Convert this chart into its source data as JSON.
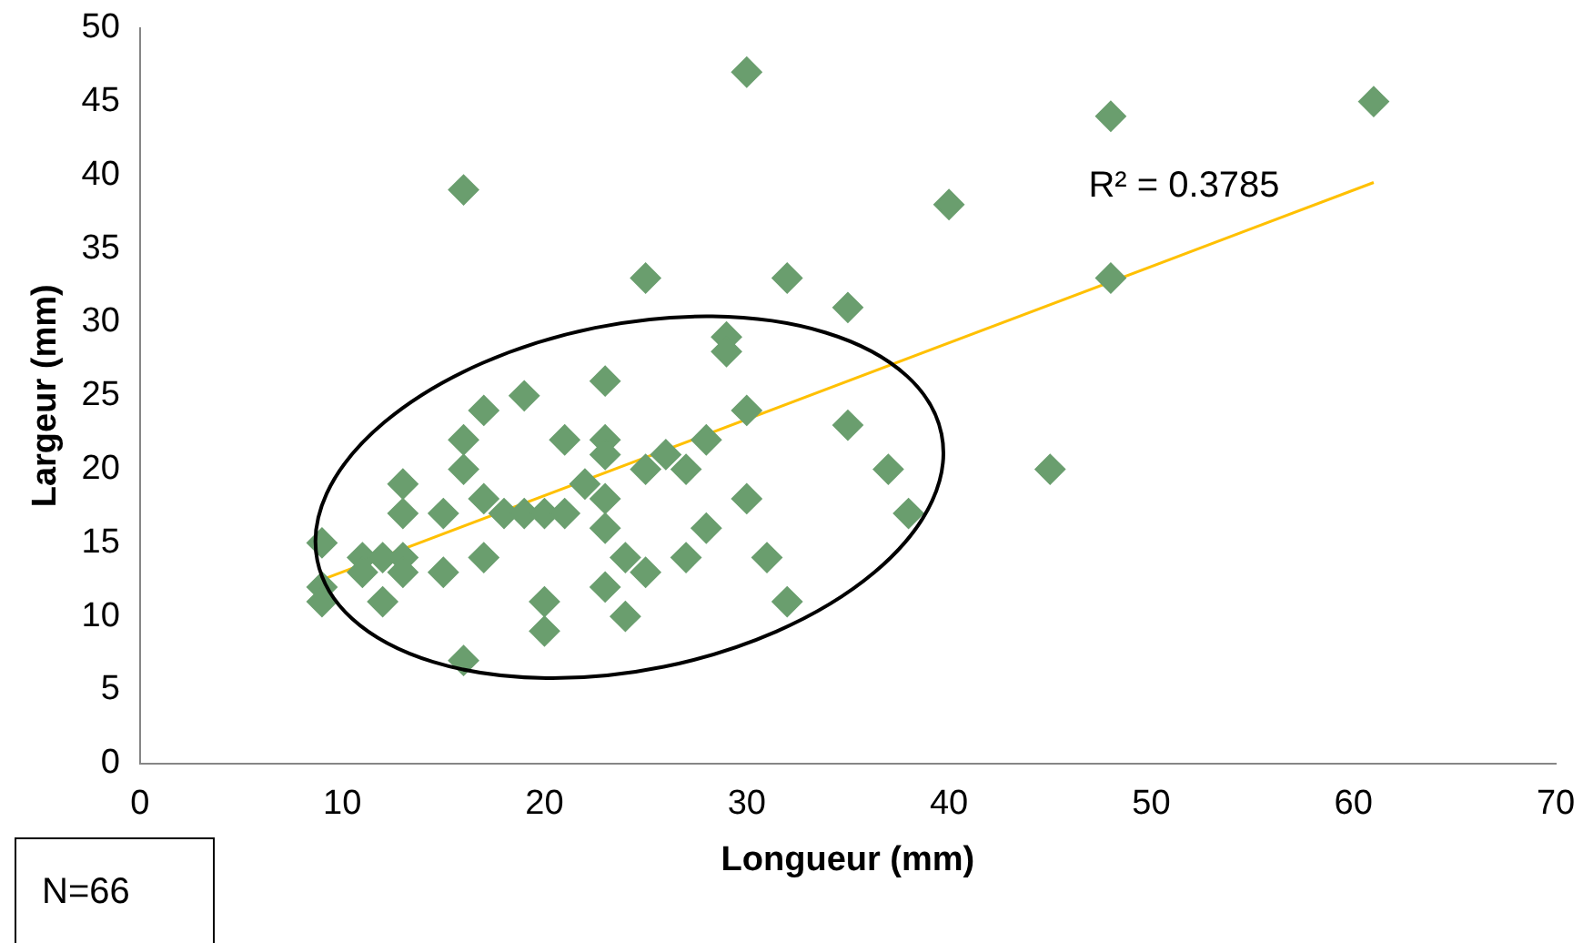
{
  "chart_data": {
    "type": "scatter",
    "xlabel": "Longueur (mm)",
    "ylabel": "Largeur (mm)",
    "xlim": [
      0,
      70
    ],
    "xticks": [
      0,
      10,
      20,
      30,
      40,
      50,
      60,
      70
    ],
    "ylim": [
      0,
      50
    ],
    "yticks": [
      0,
      5,
      10,
      15,
      20,
      25,
      30,
      35,
      40,
      45,
      50
    ],
    "grid": false,
    "legend": false,
    "marker": "diamond",
    "series": [
      {
        "color": "#6a9e6e",
        "x": [
          9,
          9,
          9,
          11,
          11,
          12,
          12,
          13,
          13,
          13,
          13,
          15,
          15,
          16,
          16,
          16,
          16,
          17,
          17,
          17,
          18,
          19,
          19,
          20,
          20,
          20,
          21,
          21,
          22,
          23,
          23,
          23,
          23,
          23,
          23,
          24,
          24,
          25,
          25,
          25,
          26,
          27,
          27,
          28,
          28,
          29,
          29,
          30,
          30,
          30,
          31,
          32,
          32,
          35,
          35,
          37,
          38,
          40,
          45,
          48,
          48,
          61
        ],
        "values": [
          15,
          12,
          11,
          14,
          13,
          14,
          11,
          19,
          17,
          14,
          13,
          17,
          13,
          39,
          22,
          20,
          7,
          24,
          18,
          14,
          17,
          25,
          17,
          17,
          11,
          9,
          22,
          17,
          19,
          26,
          22,
          21,
          18,
          16,
          12,
          14,
          10,
          33,
          20,
          13,
          21,
          20,
          14,
          22,
          16,
          29,
          28,
          47,
          24,
          18,
          14,
          33,
          11,
          31,
          23,
          20,
          17,
          38,
          20,
          44,
          33,
          45
        ]
      },
      {
        "type": "line",
        "color": "#ffc000",
        "x": [
          9,
          61
        ],
        "values": [
          12.5,
          39.5
        ],
        "marker": "none"
      }
    ],
    "annotations": [
      "R² = 0.3785",
      "N=66"
    ]
  }
}
